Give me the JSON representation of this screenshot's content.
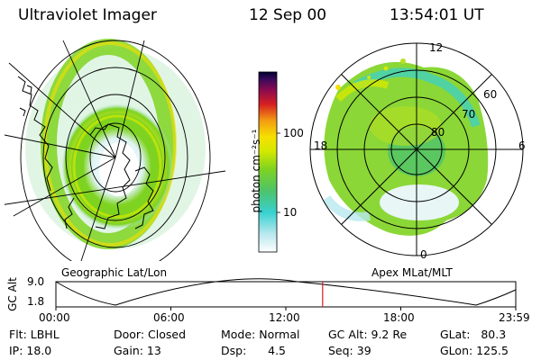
{
  "header": {
    "title": "Ultraviolet Imager",
    "date": "12 Sep 00",
    "time": "13:54:01 UT"
  },
  "colorbar": {
    "label": "photon cm⁻²s⁻¹",
    "ticks": [
      "100",
      "10"
    ]
  },
  "left_panel": {
    "caption": "Geographic Lat/Lon"
  },
  "right_panel": {
    "caption": "Apex MLat/MLT",
    "mlt_labels": {
      "top": "12",
      "left": "18",
      "right": "6",
      "bottom": "0"
    },
    "lat_labels": [
      "80",
      "70",
      "60"
    ]
  },
  "timeline": {
    "ylabel": "GC Alt",
    "ymax": "9.0",
    "ymin": "1.8",
    "time_ticks": [
      "00:00",
      "06:00",
      "12:00",
      "18:00",
      "23:59"
    ],
    "marker_fraction": 0.58
  },
  "status": {
    "flt": "Flt: LBHL",
    "ip": "IP: 18.0",
    "door": "Door: Closed",
    "gain": "Gain: 13",
    "mode": "Mode: Normal",
    "dsp": "Dsp:      4.5",
    "gcalt": "GC Alt: 9.2 Re",
    "seq": "Seq: 39",
    "glat": "GLat:   80.3",
    "glon": "GLon: 125.5"
  },
  "colors": {
    "aurora_green": "#7ed321",
    "aurora_yellow": "#f5e000",
    "aurora_cyan": "#38d0d0",
    "marker": "#d42020"
  }
}
